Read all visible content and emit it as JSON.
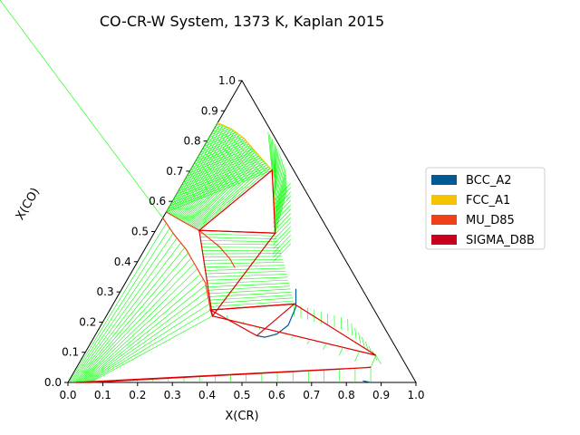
{
  "chart_data": {
    "type": "ternary-phase-diagram",
    "title": "CO-CR-W System, 1373 K, Kaplan 2015",
    "xlabel": "X(CR)",
    "ylabel": "X(CO)",
    "x_ticks": [
      "0.0",
      "0.1",
      "0.2",
      "0.3",
      "0.4",
      "0.5",
      "0.6",
      "0.7",
      "0.8",
      "0.9",
      "1.0"
    ],
    "y_ticks": [
      "0.0",
      "0.1",
      "0.2",
      "0.3",
      "0.4",
      "0.5",
      "0.6",
      "0.7",
      "0.8",
      "0.9",
      "1.0"
    ],
    "xlim": [
      0,
      1
    ],
    "ylim": [
      0,
      1
    ],
    "legend_position": "right",
    "legend": [
      {
        "name": "BCC_A2",
        "color": "#005a96"
      },
      {
        "name": "FCC_A1",
        "color": "#f5c400"
      },
      {
        "name": "MU_D85",
        "color": "#f04018"
      },
      {
        "name": "SIGMA_D8B",
        "color": "#c8001e"
      }
    ],
    "colors": {
      "tieline": "#00ff00",
      "three_phase": "#e00000",
      "fcc": "#f5c400",
      "bcc": "#005a96",
      "mu": "#f04018"
    },
    "boundaries": {
      "fcc_left": [
        [
          0.0,
          0.86
        ],
        [
          0.05,
          0.84
        ],
        [
          0.1,
          0.81
        ],
        [
          0.15,
          0.77
        ],
        [
          0.2,
          0.73
        ],
        [
          0.235,
          0.703
        ]
      ],
      "fcc_right": [
        [
          0.235,
          0.703
        ],
        [
          0.275,
          0.63
        ],
        [
          0.31,
          0.57
        ],
        [
          0.348,
          0.495
        ]
      ],
      "fcc_cr_rich": [
        [
          0.465,
          0.155
        ],
        [
          0.49,
          0.15
        ],
        [
          0.52,
          0.16
        ],
        [
          0.538,
          0.19
        ],
        [
          0.53,
          0.25
        ],
        [
          0.5,
          0.31
        ]
      ],
      "bcc_low": [
        [
          0.845,
          0.005
        ],
        [
          0.87,
          0.0
        ]
      ],
      "mu_upper": [
        [
          0.0,
          0.565
        ],
        [
          0.07,
          0.53
        ],
        [
          0.125,
          0.504
        ],
        [
          0.21,
          0.45
        ],
        [
          0.26,
          0.41
        ],
        [
          0.29,
          0.38
        ]
      ],
      "mu_lower": [
        [
          0.0,
          0.545
        ],
        [
          0.06,
          0.49
        ],
        [
          0.12,
          0.44
        ],
        [
          0.18,
          0.38
        ],
        [
          0.23,
          0.33
        ],
        [
          0.29,
          0.24
        ],
        [
          0.305,
          0.22
        ]
      ],
      "mu_w_side": [
        [
          0.4,
          0.05
        ],
        [
          0.5,
          0.04
        ],
        [
          0.6,
          0.03
        ],
        [
          0.72,
          0.02
        ],
        [
          0.78,
          0.015
        ],
        [
          0.885,
          0.005
        ]
      ]
    },
    "three_phase_triangles": [
      [
        [
          0.235,
          0.703
        ],
        [
          0.125,
          0.504
        ],
        [
          0.348,
          0.495
        ]
      ],
      [
        [
          0.125,
          0.504
        ],
        [
          0.348,
          0.495
        ],
        [
          0.305,
          0.22
        ]
      ],
      [
        [
          0.305,
          0.22
        ],
        [
          0.29,
          0.24
        ],
        [
          0.52,
          0.26
        ],
        [
          0.84,
          0.09
        ]
      ],
      [
        [
          0.29,
          0.24
        ],
        [
          0.52,
          0.26
        ],
        [
          0.465,
          0.155
        ]
      ],
      [
        [
          0.02,
          0.0
        ],
        [
          0.065,
          0.0
        ],
        [
          0.845,
          0.05
        ]
      ]
    ]
  }
}
